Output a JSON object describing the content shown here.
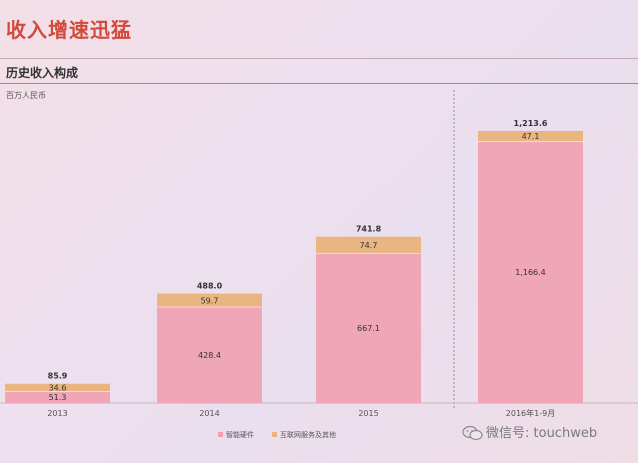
{
  "slide": {
    "title": "收入增速迅猛",
    "subtitle": "历史收入构成",
    "unit": "百万人民币"
  },
  "watermark": {
    "text": "微信号: touchweb",
    "icon": "wechat-icon"
  },
  "colors": {
    "hardware": "#f0a0b0",
    "internet": "#e9b37a",
    "divider": "#8f8f8f"
  },
  "chart_data": {
    "type": "bar",
    "stacked": true,
    "categories": [
      "2013",
      "2014",
      "2015",
      "2016年1-9月"
    ],
    "series": [
      {
        "name": "智能硬件",
        "values": [
          51.3,
          428.4,
          667.1,
          1166.4
        ],
        "color": "#f0a0b0"
      },
      {
        "name": "互联网服务及其他",
        "values": [
          34.6,
          59.7,
          74.7,
          47.1
        ],
        "color": "#e9b37a"
      }
    ],
    "totals": [
      85.9,
      488.0,
      741.8,
      1213.6
    ],
    "value_labels": {
      "hardware": [
        "51.3",
        "428.4",
        "667.1",
        "1,166.4"
      ],
      "internet": [
        "34.6",
        "59.7",
        "74.7",
        "47.1"
      ],
      "totals": [
        "85.9",
        "488.0",
        "741.8",
        "1,213.6"
      ]
    },
    "ylim": [
      0,
      1300
    ],
    "grid": false,
    "legend_position": "bottom"
  }
}
